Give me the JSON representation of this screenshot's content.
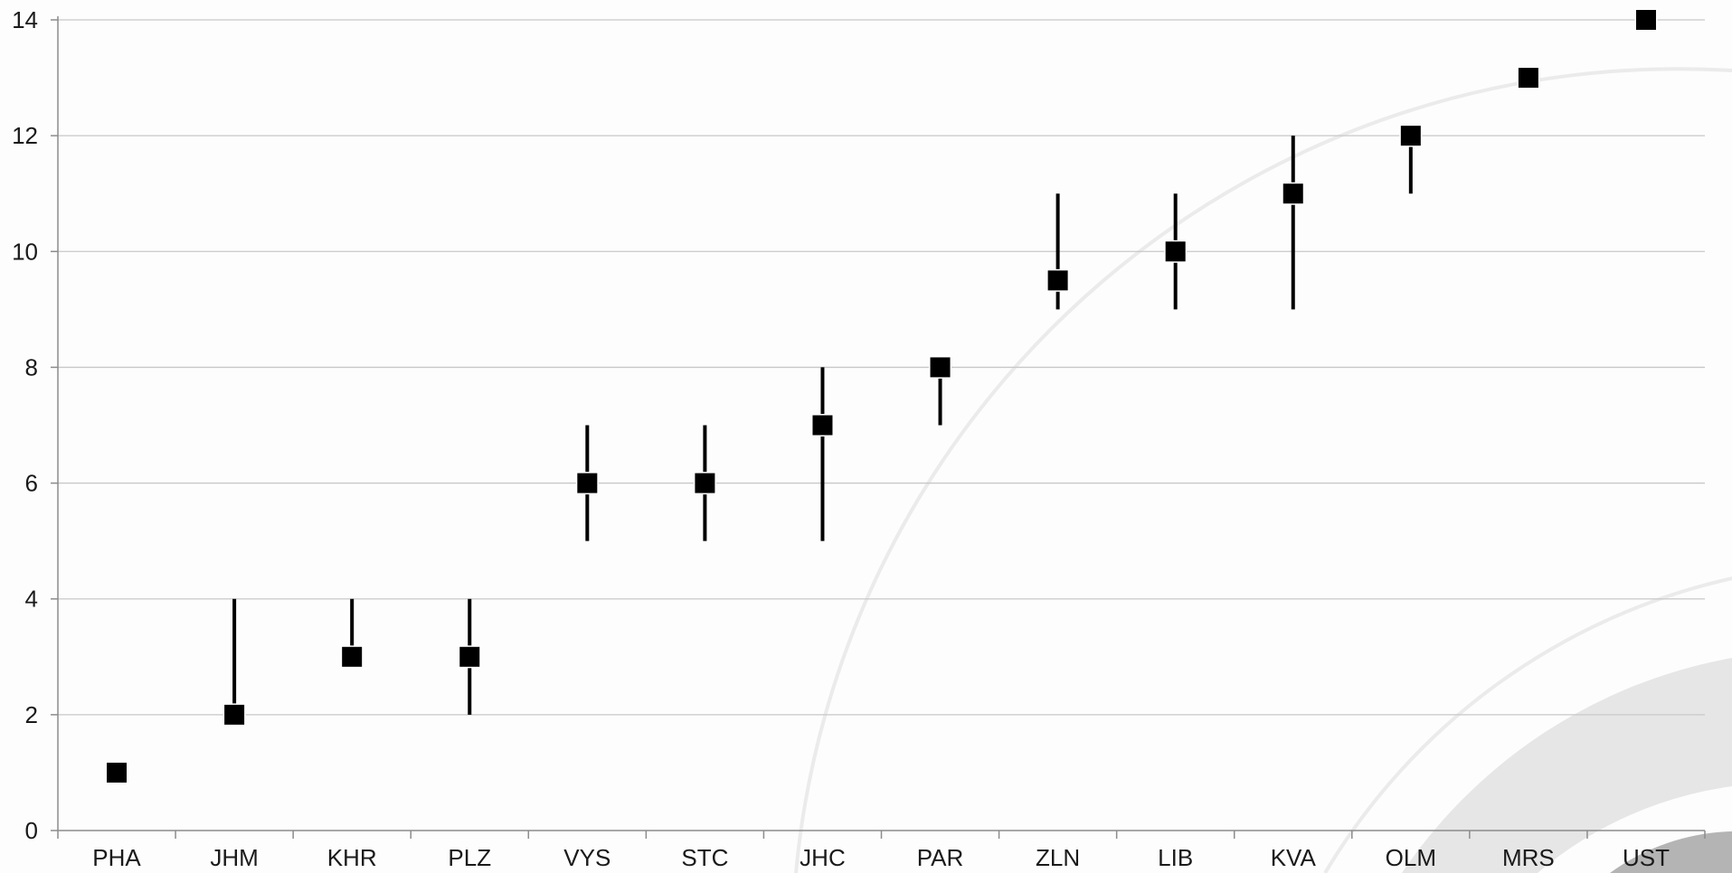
{
  "chart_data": {
    "type": "scatter",
    "categories": [
      "PHA",
      "JHM",
      "KHR",
      "PLZ",
      "VYS",
      "STC",
      "JHC",
      "PAR",
      "ZLN",
      "LIB",
      "KVA",
      "OLM",
      "MRS",
      "UST"
    ],
    "values": [
      1,
      2,
      3,
      3,
      6,
      6,
      7,
      8,
      9.5,
      10,
      11,
      12,
      13,
      14
    ],
    "error_low": [
      1,
      2,
      3,
      2,
      5,
      5,
      5,
      7,
      9,
      9,
      9,
      11,
      13,
      14
    ],
    "error_high": [
      1,
      4,
      4,
      4,
      7,
      7,
      8,
      8,
      11,
      11,
      12,
      12,
      13,
      14
    ],
    "ylim": [
      0,
      14
    ],
    "yticks": [
      0,
      2,
      4,
      6,
      8,
      10,
      12,
      14
    ],
    "title": "",
    "xlabel": "",
    "ylabel": "",
    "grid": true,
    "marker": "square",
    "colors": {
      "marker": "#000000",
      "grid": "#c8c8c8",
      "axis": "#8c8c8c",
      "background": "#fdfdfd",
      "decor_arc": "#e6e6e6"
    }
  }
}
